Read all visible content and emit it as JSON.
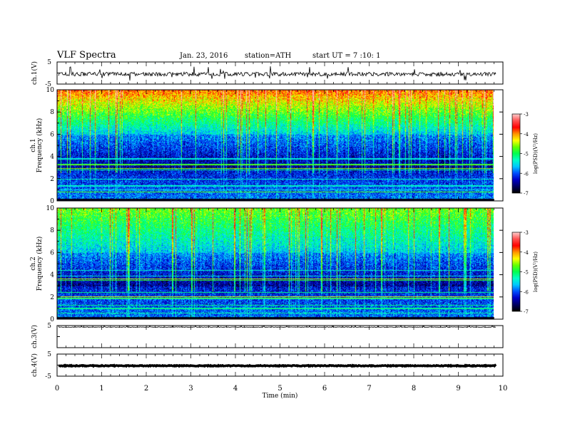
{
  "header": {
    "title": "VLF  Spectra",
    "date": "Jan. 23, 2016",
    "station": "station=ATH",
    "start_ut": "start  UT  =   7 :10: 1"
  },
  "chart_data": [
    {
      "type": "line",
      "panel": "ch1-waveform",
      "ylabel": "ch.1(V)",
      "ylim": [
        -5,
        5
      ],
      "yticks": [
        "5",
        "-5"
      ],
      "description_values": "noisy signal around -0.5 V"
    },
    {
      "type": "heatmap",
      "panel": "ch1-spectrogram",
      "ylabel_top": "ch.1",
      "ylabel": "Frequency  (kHz)",
      "ylim": [
        0,
        10
      ],
      "yticks": [
        "0",
        "2",
        "4",
        "6",
        "8",
        "10"
      ],
      "colorbar": {
        "label": "log(PSD)(V²/Hz)",
        "range": [
          -7,
          -3
        ],
        "ticks": [
          "-3",
          "-4",
          "-5",
          "-6",
          "-7"
        ]
      }
    },
    {
      "type": "heatmap",
      "panel": "ch2-spectrogram",
      "ylabel_top": "ch.2",
      "ylabel": "Frequency  (kHz)",
      "ylim": [
        0,
        10
      ],
      "yticks": [
        "0",
        "2",
        "4",
        "6",
        "8",
        "10"
      ],
      "colorbar": {
        "label": "log(PSD)(V²/Hz)",
        "range": [
          -7,
          -3
        ],
        "ticks": [
          "-3",
          "-4",
          "-5",
          "-6",
          "-7"
        ]
      }
    },
    {
      "type": "line",
      "panel": "ch3-waveform",
      "ylabel": "ch.3(V)",
      "ylim": [
        -5,
        5
      ],
      "yticks": [
        "5"
      ],
      "description_values": "flat signal near 4.5 V"
    },
    {
      "type": "line",
      "panel": "ch4-waveform",
      "ylabel": "ch.4(V)",
      "ylim": [
        -5,
        5
      ],
      "yticks": [
        "5",
        "-5"
      ],
      "description_values": "flat signal near 0 V"
    }
  ],
  "xaxis": {
    "label": "Time  (min)",
    "xlim": [
      0,
      10
    ],
    "ticks": [
      "0",
      "1",
      "2",
      "3",
      "4",
      "5",
      "6",
      "7",
      "8",
      "9",
      "10"
    ],
    "data_end": 9.8
  },
  "colors": {
    "scale": [
      "#000000",
      "#000064",
      "#0000c8",
      "#0050ff",
      "#00c8ff",
      "#00ffc8",
      "#00ff50",
      "#64ff00",
      "#ffff00",
      "#ff9600",
      "#ff0000",
      "#ff5050",
      "#ffc8c8"
    ]
  }
}
